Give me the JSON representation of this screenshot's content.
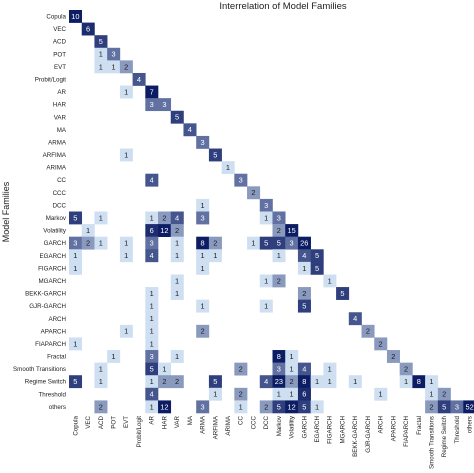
{
  "chart_data": {
    "type": "heatmap",
    "title": "Interrelation of Model Families",
    "ylabel": "Model Families",
    "xlabel": "",
    "grid": false,
    "legend": "none",
    "families": [
      "Copula",
      "VEC",
      "ACD",
      "POT",
      "EVT",
      "Probit/Logit",
      "AR",
      "HAR",
      "VAR",
      "MA",
      "ARMA",
      "ARFIMA",
      "ARIMA",
      "CC",
      "CCC",
      "DCC",
      "Markov",
      "Volatility",
      "GARCH",
      "EGARCH",
      "FIGARCH",
      "MGARCH",
      "BEKK-GARCH",
      "GJR-GARCH",
      "ARCH",
      "APARCH",
      "FIAPARCH",
      "Fractal",
      "Smooth Transitions",
      "Regime Switch",
      "Threshold",
      "others"
    ],
    "cells": [
      {
        "row": 0,
        "col": 0,
        "value": 10
      },
      {
        "row": 1,
        "col": 1,
        "value": 6
      },
      {
        "row": 2,
        "col": 2,
        "value": 5
      },
      {
        "row": 3,
        "col": 2,
        "value": 1
      },
      {
        "row": 3,
        "col": 3,
        "value": 3
      },
      {
        "row": 4,
        "col": 2,
        "value": 1
      },
      {
        "row": 4,
        "col": 3,
        "value": 1
      },
      {
        "row": 4,
        "col": 4,
        "value": 2
      },
      {
        "row": 5,
        "col": 5,
        "value": 4
      },
      {
        "row": 6,
        "col": 4,
        "value": 1
      },
      {
        "row": 6,
        "col": 6,
        "value": 7
      },
      {
        "row": 7,
        "col": 6,
        "value": 3
      },
      {
        "row": 7,
        "col": 7,
        "value": 3
      },
      {
        "row": 8,
        "col": 8,
        "value": 5
      },
      {
        "row": 9,
        "col": 9,
        "value": 4
      },
      {
        "row": 10,
        "col": 10,
        "value": 3
      },
      {
        "row": 11,
        "col": 4,
        "value": 1
      },
      {
        "row": 11,
        "col": 11,
        "value": 5
      },
      {
        "row": 12,
        "col": 12,
        "value": 1
      },
      {
        "row": 13,
        "col": 6,
        "value": 4
      },
      {
        "row": 13,
        "col": 13,
        "value": 3
      },
      {
        "row": 14,
        "col": 14,
        "value": 2
      },
      {
        "row": 15,
        "col": 10,
        "value": 1
      },
      {
        "row": 15,
        "col": 15,
        "value": 3
      },
      {
        "row": 16,
        "col": 0,
        "value": 5
      },
      {
        "row": 16,
        "col": 2,
        "value": 1
      },
      {
        "row": 16,
        "col": 6,
        "value": 1
      },
      {
        "row": 16,
        "col": 7,
        "value": 2
      },
      {
        "row": 16,
        "col": 8,
        "value": 4
      },
      {
        "row": 16,
        "col": 10,
        "value": 3
      },
      {
        "row": 16,
        "col": 15,
        "value": 1
      },
      {
        "row": 16,
        "col": 16,
        "value": 3
      },
      {
        "row": 17,
        "col": 1,
        "value": 1
      },
      {
        "row": 17,
        "col": 6,
        "value": 6
      },
      {
        "row": 17,
        "col": 7,
        "value": 12
      },
      {
        "row": 17,
        "col": 8,
        "value": 2
      },
      {
        "row": 17,
        "col": 16,
        "value": 2
      },
      {
        "row": 17,
        "col": 17,
        "value": 15
      },
      {
        "row": 18,
        "col": 0,
        "value": 3
      },
      {
        "row": 18,
        "col": 1,
        "value": 2
      },
      {
        "row": 18,
        "col": 2,
        "value": 1
      },
      {
        "row": 18,
        "col": 4,
        "value": 1
      },
      {
        "row": 18,
        "col": 6,
        "value": 3
      },
      {
        "row": 18,
        "col": 8,
        "value": 1
      },
      {
        "row": 18,
        "col": 10,
        "value": 8
      },
      {
        "row": 18,
        "col": 11,
        "value": 2
      },
      {
        "row": 18,
        "col": 14,
        "value": 1
      },
      {
        "row": 18,
        "col": 15,
        "value": 5
      },
      {
        "row": 18,
        "col": 16,
        "value": 5
      },
      {
        "row": 18,
        "col": 17,
        "value": 3
      },
      {
        "row": 18,
        "col": 18,
        "value": 26
      },
      {
        "row": 19,
        "col": 0,
        "value": 1
      },
      {
        "row": 19,
        "col": 4,
        "value": 1
      },
      {
        "row": 19,
        "col": 6,
        "value": 4
      },
      {
        "row": 19,
        "col": 8,
        "value": 1
      },
      {
        "row": 19,
        "col": 10,
        "value": 1
      },
      {
        "row": 19,
        "col": 11,
        "value": 1
      },
      {
        "row": 19,
        "col": 16,
        "value": 1
      },
      {
        "row": 19,
        "col": 18,
        "value": 4
      },
      {
        "row": 19,
        "col": 19,
        "value": 5
      },
      {
        "row": 20,
        "col": 0,
        "value": 1
      },
      {
        "row": 20,
        "col": 10,
        "value": 1
      },
      {
        "row": 20,
        "col": 18,
        "value": 1
      },
      {
        "row": 20,
        "col": 19,
        "value": 5
      },
      {
        "row": 21,
        "col": 8,
        "value": 1
      },
      {
        "row": 21,
        "col": 15,
        "value": 1
      },
      {
        "row": 21,
        "col": 16,
        "value": 2
      },
      {
        "row": 21,
        "col": 20,
        "value": 1
      },
      {
        "row": 22,
        "col": 6,
        "value": 1
      },
      {
        "row": 22,
        "col": 8,
        "value": 1
      },
      {
        "row": 22,
        "col": 18,
        "value": 2
      },
      {
        "row": 22,
        "col": 21,
        "value": 5
      },
      {
        "row": 23,
        "col": 6,
        "value": 1
      },
      {
        "row": 23,
        "col": 10,
        "value": 1
      },
      {
        "row": 23,
        "col": 15,
        "value": 1
      },
      {
        "row": 23,
        "col": 18,
        "value": 5
      },
      {
        "row": 24,
        "col": 6,
        "value": 1
      },
      {
        "row": 24,
        "col": 22,
        "value": 4
      },
      {
        "row": 25,
        "col": 4,
        "value": 1
      },
      {
        "row": 25,
        "col": 6,
        "value": 1
      },
      {
        "row": 25,
        "col": 10,
        "value": 2
      },
      {
        "row": 25,
        "col": 23,
        "value": 2
      },
      {
        "row": 26,
        "col": 0,
        "value": 1
      },
      {
        "row": 26,
        "col": 6,
        "value": 1
      },
      {
        "row": 26,
        "col": 24,
        "value": 2
      },
      {
        "row": 27,
        "col": 3,
        "value": 1
      },
      {
        "row": 27,
        "col": 6,
        "value": 3
      },
      {
        "row": 27,
        "col": 8,
        "value": 1
      },
      {
        "row": 27,
        "col": 16,
        "value": 8
      },
      {
        "row": 27,
        "col": 17,
        "value": 1
      },
      {
        "row": 27,
        "col": 25,
        "value": 2
      },
      {
        "row": 28,
        "col": 2,
        "value": 1
      },
      {
        "row": 28,
        "col": 6,
        "value": 5
      },
      {
        "row": 28,
        "col": 7,
        "value": 1
      },
      {
        "row": 28,
        "col": 13,
        "value": 2
      },
      {
        "row": 28,
        "col": 16,
        "value": 3
      },
      {
        "row": 28,
        "col": 17,
        "value": 1
      },
      {
        "row": 28,
        "col": 18,
        "value": 4
      },
      {
        "row": 28,
        "col": 20,
        "value": 1
      },
      {
        "row": 28,
        "col": 26,
        "value": 2
      },
      {
        "row": 29,
        "col": 0,
        "value": 5
      },
      {
        "row": 29,
        "col": 2,
        "value": 1
      },
      {
        "row": 29,
        "col": 6,
        "value": 1
      },
      {
        "row": 29,
        "col": 7,
        "value": 2
      },
      {
        "row": 29,
        "col": 8,
        "value": 2
      },
      {
        "row": 29,
        "col": 11,
        "value": 5
      },
      {
        "row": 29,
        "col": 15,
        "value": 4
      },
      {
        "row": 29,
        "col": 16,
        "value": 23
      },
      {
        "row": 29,
        "col": 17,
        "value": 2
      },
      {
        "row": 29,
        "col": 18,
        "value": 8
      },
      {
        "row": 29,
        "col": 19,
        "value": 1
      },
      {
        "row": 29,
        "col": 20,
        "value": 1
      },
      {
        "row": 29,
        "col": 22,
        "value": 1
      },
      {
        "row": 29,
        "col": 26,
        "value": 1
      },
      {
        "row": 29,
        "col": 27,
        "value": 8
      },
      {
        "row": 29,
        "col": 28,
        "value": 1
      },
      {
        "row": 30,
        "col": 6,
        "value": 4
      },
      {
        "row": 30,
        "col": 11,
        "value": 1
      },
      {
        "row": 30,
        "col": 13,
        "value": 2
      },
      {
        "row": 30,
        "col": 16,
        "value": 1
      },
      {
        "row": 30,
        "col": 17,
        "value": 1
      },
      {
        "row": 30,
        "col": 18,
        "value": 6
      },
      {
        "row": 30,
        "col": 24,
        "value": 1
      },
      {
        "row": 30,
        "col": 28,
        "value": 1
      },
      {
        "row": 30,
        "col": 29,
        "value": 2
      },
      {
        "row": 31,
        "col": 2,
        "value": 2
      },
      {
        "row": 31,
        "col": 6,
        "value": 1
      },
      {
        "row": 31,
        "col": 7,
        "value": 12
      },
      {
        "row": 31,
        "col": 10,
        "value": 3
      },
      {
        "row": 31,
        "col": 13,
        "value": 1
      },
      {
        "row": 31,
        "col": 15,
        "value": 2
      },
      {
        "row": 31,
        "col": 16,
        "value": 5
      },
      {
        "row": 31,
        "col": 17,
        "value": 12
      },
      {
        "row": 31,
        "col": 18,
        "value": 5
      },
      {
        "row": 31,
        "col": 19,
        "value": 1
      },
      {
        "row": 31,
        "col": 28,
        "value": 2
      },
      {
        "row": 31,
        "col": 29,
        "value": 5
      },
      {
        "row": 31,
        "col": 30,
        "value": 3
      },
      {
        "row": 31,
        "col": 31,
        "value": 52
      }
    ]
  }
}
